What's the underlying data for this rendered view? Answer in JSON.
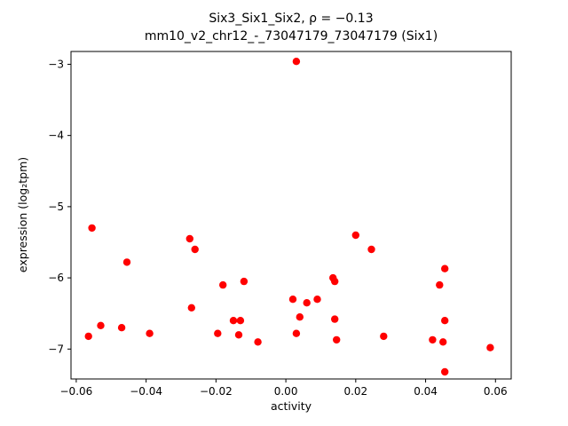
{
  "chart_data": {
    "type": "scatter",
    "title": "Six3_Six1_Six2, ρ = −0.13",
    "subtitle": "mm10_v2_chr12_-_73047179_73047179 (Six1)",
    "xlabel": "activity",
    "ylabel": "expression (log₂tpm)",
    "marker_color": "#ff0000",
    "xlim": [
      -0.0615,
      0.0645
    ],
    "ylim": [
      -7.42,
      -2.82
    ],
    "xticks": [
      {
        "value": -0.06,
        "label": "−0.06"
      },
      {
        "value": -0.04,
        "label": "−0.04"
      },
      {
        "value": -0.02,
        "label": "−0.02"
      },
      {
        "value": 0.0,
        "label": "0.00"
      },
      {
        "value": 0.02,
        "label": "0.02"
      },
      {
        "value": 0.04,
        "label": "0.04"
      },
      {
        "value": 0.06,
        "label": "0.06"
      }
    ],
    "yticks": [
      {
        "value": -3,
        "label": "−3"
      },
      {
        "value": -4,
        "label": "−4"
      },
      {
        "value": -5,
        "label": "−5"
      },
      {
        "value": -6,
        "label": "−6"
      },
      {
        "value": -7,
        "label": "−7"
      }
    ],
    "points": [
      {
        "x": -0.0555,
        "y": -5.3
      },
      {
        "x": -0.0565,
        "y": -6.82
      },
      {
        "x": -0.053,
        "y": -6.67
      },
      {
        "x": -0.047,
        "y": -6.7
      },
      {
        "x": -0.0455,
        "y": -5.78
      },
      {
        "x": -0.039,
        "y": -6.78
      },
      {
        "x": -0.0275,
        "y": -5.45
      },
      {
        "x": -0.026,
        "y": -5.6
      },
      {
        "x": -0.027,
        "y": -6.42
      },
      {
        "x": -0.0195,
        "y": -6.78
      },
      {
        "x": -0.018,
        "y": -6.1
      },
      {
        "x": -0.015,
        "y": -6.6
      },
      {
        "x": -0.0135,
        "y": -6.8
      },
      {
        "x": -0.013,
        "y": -6.6
      },
      {
        "x": -0.012,
        "y": -6.05
      },
      {
        "x": -0.008,
        "y": -6.9
      },
      {
        "x": 0.003,
        "y": -2.96
      },
      {
        "x": 0.002,
        "y": -6.3
      },
      {
        "x": 0.003,
        "y": -6.78
      },
      {
        "x": 0.004,
        "y": -6.55
      },
      {
        "x": 0.006,
        "y": -6.35
      },
      {
        "x": 0.009,
        "y": -6.3
      },
      {
        "x": 0.0135,
        "y": -6.0
      },
      {
        "x": 0.014,
        "y": -6.05
      },
      {
        "x": 0.014,
        "y": -6.58
      },
      {
        "x": 0.0145,
        "y": -6.87
      },
      {
        "x": 0.02,
        "y": -5.4
      },
      {
        "x": 0.0245,
        "y": -5.6
      },
      {
        "x": 0.028,
        "y": -6.82
      },
      {
        "x": 0.042,
        "y": -6.87
      },
      {
        "x": 0.044,
        "y": -6.1
      },
      {
        "x": 0.0455,
        "y": -5.87
      },
      {
        "x": 0.0455,
        "y": -6.6
      },
      {
        "x": 0.045,
        "y": -6.9
      },
      {
        "x": 0.0455,
        "y": -7.32
      },
      {
        "x": 0.0585,
        "y": -6.98
      }
    ]
  }
}
